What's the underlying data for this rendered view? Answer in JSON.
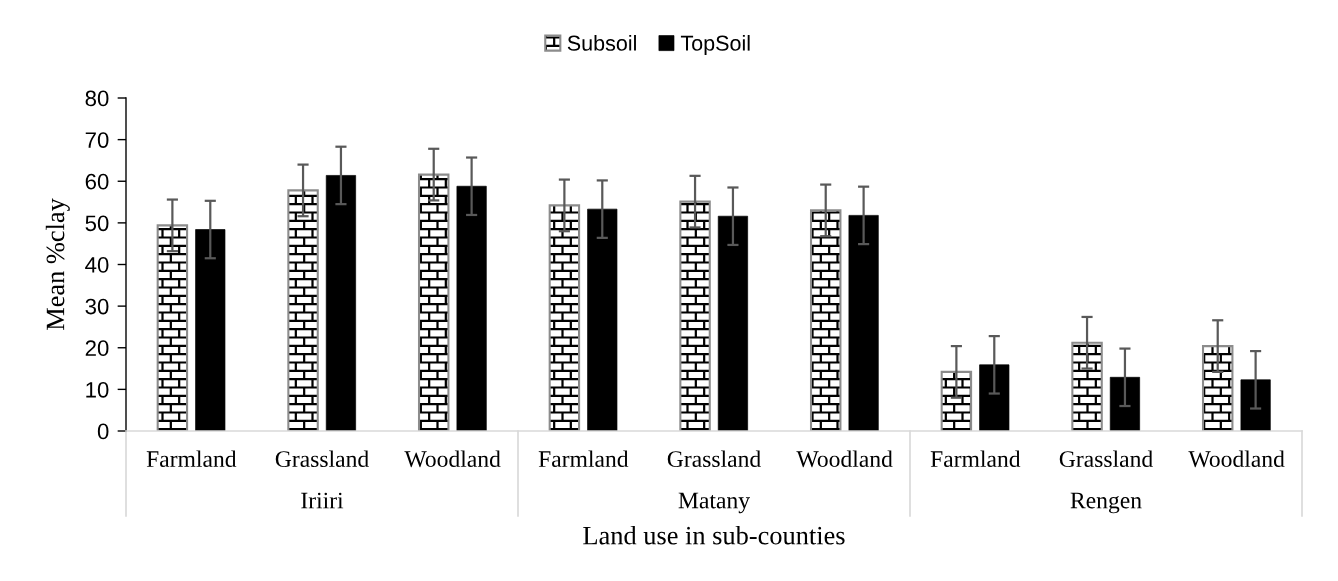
{
  "chart_data": {
    "type": "bar",
    "xlabel": "Land use in sub-counties",
    "ylabel": "Mean %clay",
    "categories": [
      "Farmland",
      "Grassland",
      "Woodland",
      "Farmland",
      "Grassland",
      "Woodland",
      "Farmland",
      "Grassland",
      "Woodland"
    ],
    "series": [
      {
        "name": "Subsoil",
        "color": "#8c8c8c",
        "values": [
          49.4,
          57.8,
          61.6,
          54.2,
          55.1,
          53.0,
          14.2,
          21.2,
          20.4
        ],
        "errors": [
          6.2,
          6.2,
          6.2,
          6.2,
          6.2,
          6.2,
          6.2,
          6.2,
          6.2
        ]
      },
      {
        "name": "TopSoil",
        "color": "#000000",
        "values": [
          48.4,
          61.4,
          58.8,
          53.3,
          51.6,
          51.8,
          15.9,
          12.9,
          12.3
        ],
        "errors": [
          6.9,
          6.9,
          6.9,
          6.9,
          6.9,
          6.9,
          6.9,
          6.9,
          6.9
        ]
      }
    ],
    "ylim": [
      0,
      80
    ],
    "yticks": [
      0,
      10,
      20,
      30,
      40,
      50,
      60,
      70,
      80
    ],
    "legend": "top",
    "grid": false,
    "annotations": [
      "Iriiri",
      "Matany",
      "Rengen"
    ]
  }
}
